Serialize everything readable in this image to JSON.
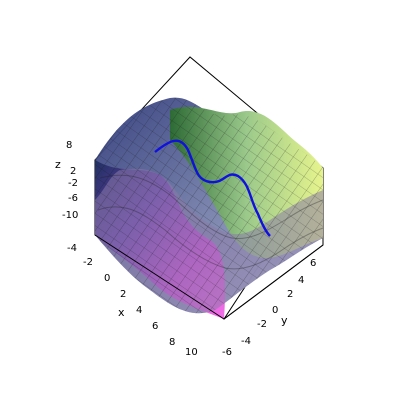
{
  "chart_data": {
    "type": "surface3d",
    "function_shape": "periodic wave surface with ridges and valleys; a highlighted cross-section curve is drawn in blue",
    "x_axis": {
      "label": "x",
      "ticks": [
        "-4",
        "-2",
        "0",
        "2",
        "4",
        "6",
        "8",
        "10"
      ],
      "range": [
        -4,
        10
      ]
    },
    "y_axis": {
      "label": "y",
      "ticks": [
        "-6",
        "-4",
        "-2",
        "0",
        "2",
        "4",
        "6"
      ],
      "range": [
        -6,
        6
      ]
    },
    "z_axis": {
      "label": "z",
      "ticks": [
        "8",
        "2",
        "-2",
        "-6",
        "-10"
      ],
      "range": [
        -10,
        8
      ]
    },
    "bounding_box": true,
    "grid_mesh": true,
    "curve_color": "#1010e0",
    "surface_palette": [
      "#2a2f6e",
      "#6c3fa8",
      "#b04ad0",
      "#f04ce0",
      "#7a8a6a",
      "#b7c98a",
      "#e9f58f",
      "#9fd08f",
      "#5d8f5a"
    ]
  }
}
